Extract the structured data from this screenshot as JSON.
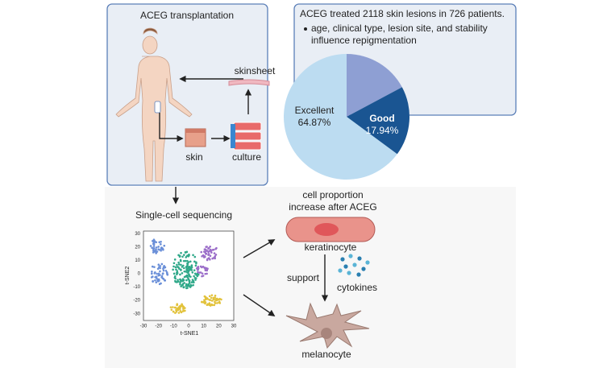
{
  "left_panel": {
    "title": "ACEG transplantation",
    "skinsheet": "skinsheet",
    "skin": "skin",
    "culture": "culture"
  },
  "right_panel": {
    "title": "ACEG treated 2118 skin lesions in 726 patients.",
    "bullet_lines": [
      "age, clinical type, lesion site, and stability",
      "influence repigmentation"
    ]
  },
  "pie": {
    "labels": [
      null,
      "Good",
      "Excellent"
    ],
    "values": [
      17.19,
      17.94,
      64.87
    ],
    "value_labels": [
      null,
      "17.94%",
      "64.87%"
    ],
    "colors": [
      "#8e9fd3",
      "#1a5592",
      "#bcdcf1"
    ]
  },
  "sequencing": {
    "title": "Single-cell sequencing",
    "x_label": "t-SNE1",
    "y_label": "t-SNE2",
    "xlim": [
      -30,
      30
    ],
    "ylim": [
      -35,
      32
    ],
    "xticks": [
      -30,
      -20,
      -10,
      0,
      10,
      20,
      30
    ],
    "yticks": [
      30,
      20,
      10,
      0,
      -10,
      -20,
      -30
    ]
  },
  "cells": {
    "note_lines": [
      "cell proportion",
      "increase after ACEG"
    ],
    "keratinocyte": "keratinocyte",
    "support": "support",
    "cytokines": "cytokines",
    "melanocyte": "melanocyte"
  }
}
